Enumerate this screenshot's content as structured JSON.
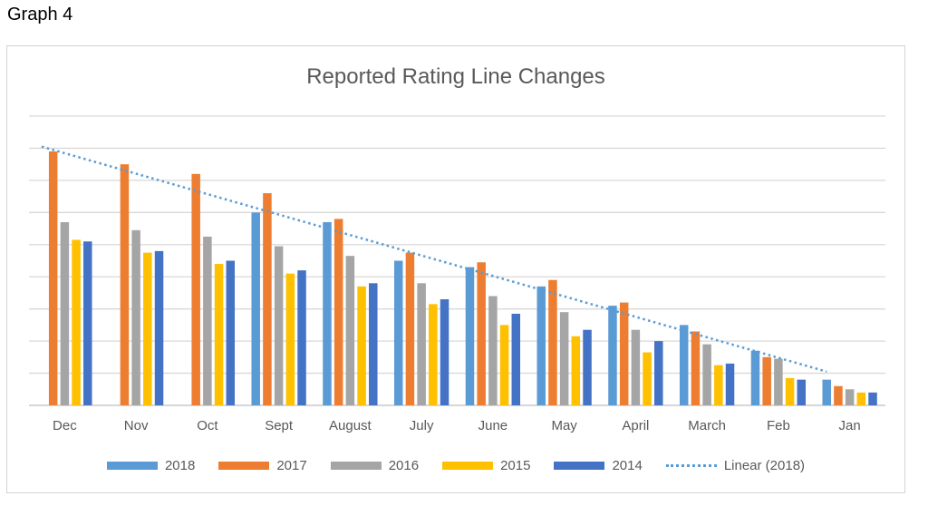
{
  "page_label": "Graph 4",
  "chart_data": {
    "type": "bar",
    "title": "Reported Rating Line Changes",
    "xlabel": "",
    "ylabel": "",
    "categories": [
      "Dec",
      "Nov",
      "Oct",
      "Sept",
      "August",
      "July",
      "June",
      "May",
      "April",
      "March",
      "Feb",
      "Jan"
    ],
    "ylim": [
      0,
      9
    ],
    "gridlines": true,
    "y_tick_labels_visible": false,
    "legend_position": "bottom",
    "series": [
      {
        "name": "2018",
        "color": "#5b9bd5",
        "values": [
          null,
          null,
          null,
          6.0,
          5.7,
          4.5,
          4.3,
          3.7,
          3.1,
          2.5,
          1.7,
          0.8
        ]
      },
      {
        "name": "2017",
        "color": "#ed7d31",
        "values": [
          7.9,
          7.5,
          7.2,
          6.6,
          5.8,
          4.75,
          4.45,
          3.9,
          3.2,
          2.3,
          1.5,
          0.6
        ]
      },
      {
        "name": "2016",
        "color": "#a5a5a5",
        "values": [
          5.7,
          5.45,
          5.25,
          4.95,
          4.65,
          3.8,
          3.4,
          2.9,
          2.35,
          1.9,
          1.45,
          0.5
        ]
      },
      {
        "name": "2015",
        "color": "#ffc000",
        "values": [
          5.15,
          4.75,
          4.4,
          4.1,
          3.7,
          3.15,
          2.5,
          2.15,
          1.65,
          1.25,
          0.85,
          0.4
        ]
      },
      {
        "name": "2014",
        "color": "#4472c4",
        "values": [
          5.1,
          4.8,
          4.5,
          4.2,
          3.8,
          3.3,
          2.85,
          2.35,
          2.0,
          1.3,
          0.8,
          0.4
        ]
      }
    ],
    "trendline": {
      "name": "Linear (2018)",
      "color": "#5b9bd5",
      "style": "dotted",
      "start": 8.05,
      "end": 1.05
    }
  }
}
